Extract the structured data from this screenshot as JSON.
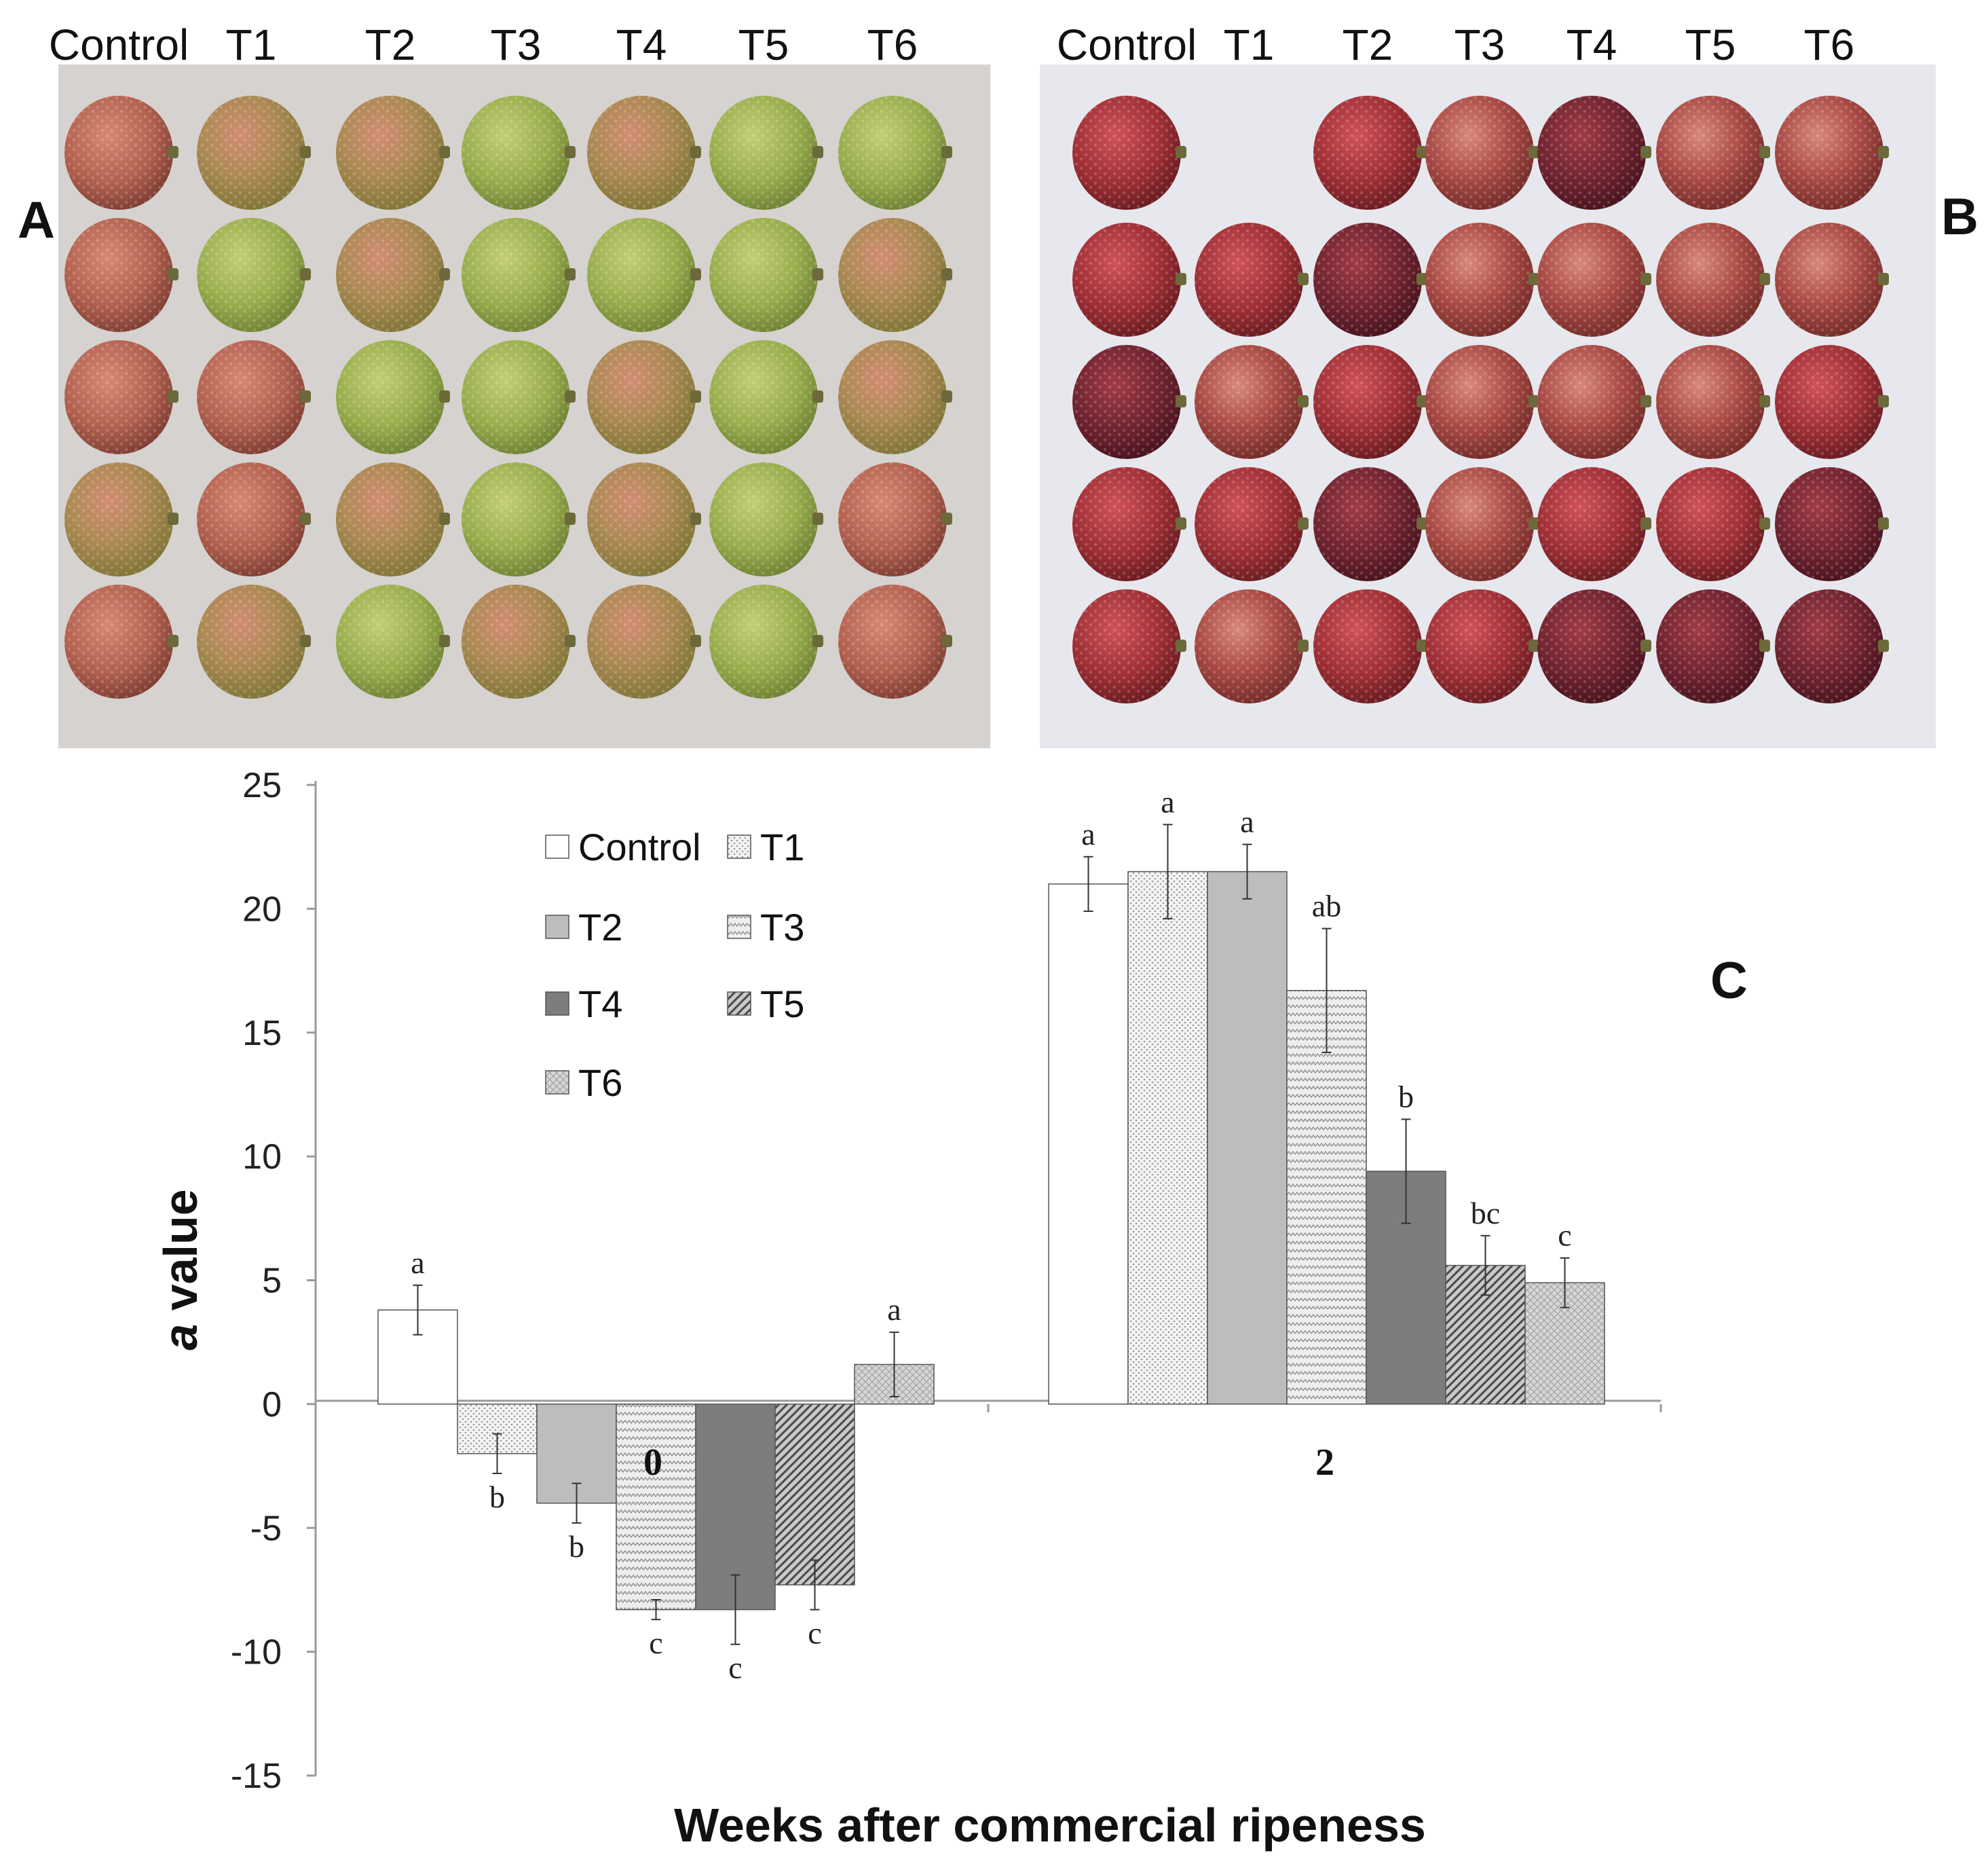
{
  "panels": {
    "A": {
      "letter": "A",
      "column_labels": [
        "Control",
        "T1",
        "T2",
        "T3",
        "T4",
        "T5",
        "T6"
      ],
      "rows": 5
    },
    "B": {
      "letter": "B",
      "column_labels": [
        "Control",
        "T1",
        "T2",
        "T3",
        "T4",
        "T5",
        "T6"
      ],
      "rows": 5
    },
    "C": {
      "letter": "C"
    }
  },
  "colors": {
    "photo_bg_A": "#d6d2cf",
    "photo_bg_B": "#e7e8ee",
    "fruit_green": "#9aae4a",
    "fruit_pink": "#c46a5a",
    "fruit_red": "#9b2a2c",
    "fruit_dark": "#6e1f24"
  },
  "chart_data": {
    "type": "bar",
    "xlabel": "Weeks after commercial ripeness",
    "ylabel_italic": "a",
    "ylabel_rest": " value",
    "ylim": [
      -15,
      25
    ],
    "yticks": [
      -15,
      -10,
      -5,
      0,
      5,
      10,
      15,
      20,
      25
    ],
    "categories": [
      "0",
      "2"
    ],
    "legend_placement": "upper-left",
    "series": [
      {
        "name": "Control",
        "pattern": "plain",
        "values": [
          3.8,
          21.0
        ],
        "errors": [
          1.0,
          1.1
        ],
        "letters": [
          "a",
          "a"
        ]
      },
      {
        "name": "T1",
        "pattern": "dots",
        "values": [
          -2.0,
          21.5
        ],
        "errors": [
          0.8,
          1.9
        ],
        "letters": [
          "b",
          "a"
        ]
      },
      {
        "name": "T2",
        "pattern": "grey",
        "values": [
          -4.0,
          21.5
        ],
        "errors": [
          0.8,
          1.1
        ],
        "letters": [
          "b",
          "a"
        ]
      },
      {
        "name": "T3",
        "pattern": "zigzag",
        "values": [
          -8.3,
          16.7
        ],
        "errors": [
          0.4,
          2.5
        ],
        "letters": [
          "c",
          "ab"
        ]
      },
      {
        "name": "T4",
        "pattern": "dark",
        "values": [
          -8.3,
          9.4
        ],
        "errors": [
          1.4,
          2.1
        ],
        "letters": [
          "c",
          "b"
        ]
      },
      {
        "name": "T5",
        "pattern": "diag",
        "values": [
          -7.3,
          5.6
        ],
        "errors": [
          1.0,
          1.2
        ],
        "letters": [
          "c",
          "bc"
        ]
      },
      {
        "name": "T6",
        "pattern": "cross",
        "values": [
          1.6,
          4.9
        ],
        "errors": [
          1.3,
          1.0
        ],
        "letters": [
          "a",
          "c"
        ]
      }
    ]
  }
}
